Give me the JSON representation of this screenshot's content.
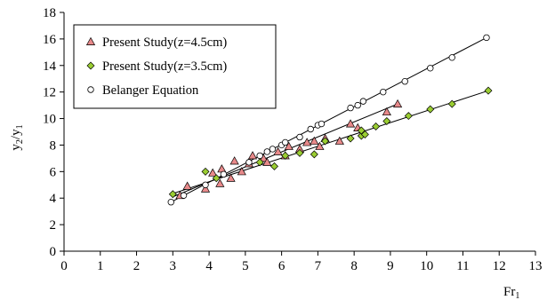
{
  "chart_data": {
    "type": "scatter",
    "xlabel": {
      "base": "Fr",
      "sub": "1"
    },
    "ylabel": {
      "base": "y",
      "sub1": "2",
      "mid": "/y",
      "sub2": "1"
    },
    "xlim": [
      0,
      13
    ],
    "ylim": [
      0,
      18
    ],
    "x_ticks": [
      "0",
      "1",
      "2",
      "3",
      "4",
      "5",
      "6",
      "7",
      "8",
      "9",
      "10",
      "11",
      "12",
      "13"
    ],
    "y_ticks": [
      "0",
      "2",
      "4",
      "6",
      "8",
      "10",
      "12",
      "14",
      "16",
      "18"
    ],
    "grid": false,
    "legend_position": "top-left",
    "series": [
      {
        "name": "Present Study(z=4.5cm)",
        "marker": "triangle",
        "color": "#e8898a",
        "trendline": [
          [
            3.0,
            4.1
          ],
          [
            9.2,
            11.1
          ]
        ],
        "points": [
          [
            3.2,
            4.2
          ],
          [
            3.4,
            4.9
          ],
          [
            3.9,
            4.7
          ],
          [
            4.1,
            5.9
          ],
          [
            4.3,
            5.1
          ],
          [
            4.35,
            6.2
          ],
          [
            4.6,
            5.5
          ],
          [
            4.7,
            6.8
          ],
          [
            4.9,
            6.0
          ],
          [
            5.1,
            6.6
          ],
          [
            5.2,
            7.2
          ],
          [
            5.5,
            7.0
          ],
          [
            5.6,
            6.7
          ],
          [
            5.9,
            7.5
          ],
          [
            6.1,
            7.2
          ],
          [
            6.2,
            7.9
          ],
          [
            6.5,
            7.7
          ],
          [
            6.7,
            8.2
          ],
          [
            6.9,
            8.3
          ],
          [
            7.05,
            7.9
          ],
          [
            7.2,
            8.5
          ],
          [
            7.6,
            8.3
          ],
          [
            7.9,
            9.6
          ],
          [
            8.1,
            9.3
          ],
          [
            8.9,
            10.5
          ],
          [
            9.2,
            11.1
          ]
        ]
      },
      {
        "name": "Present Study(z=3.5cm)",
        "marker": "diamond",
        "color": "#9acd32",
        "trendline": [
          [
            2.95,
            4.3
          ],
          [
            11.7,
            12.1
          ]
        ],
        "points": [
          [
            3.0,
            4.3
          ],
          [
            3.9,
            6.0
          ],
          [
            4.2,
            5.5
          ],
          [
            5.4,
            6.7
          ],
          [
            5.8,
            6.4
          ],
          [
            6.1,
            7.2
          ],
          [
            6.5,
            7.4
          ],
          [
            6.9,
            7.3
          ],
          [
            7.2,
            8.3
          ],
          [
            7.9,
            8.5
          ],
          [
            8.2,
            8.7
          ],
          [
            8.2,
            9.1
          ],
          [
            8.3,
            8.8
          ],
          [
            8.6,
            9.4
          ],
          [
            8.9,
            9.8
          ],
          [
            9.5,
            10.2
          ],
          [
            10.1,
            10.7
          ],
          [
            10.7,
            11.1
          ],
          [
            11.7,
            12.1
          ]
        ]
      },
      {
        "name": "Belanger Equation",
        "marker": "circle",
        "color": "#ffffff",
        "trendline": [
          [
            2.95,
            3.7
          ],
          [
            11.65,
            16.1
          ]
        ],
        "points": [
          [
            2.95,
            3.7
          ],
          [
            3.3,
            4.2
          ],
          [
            3.9,
            5.0
          ],
          [
            4.4,
            5.8
          ],
          [
            5.1,
            6.7
          ],
          [
            5.4,
            7.2
          ],
          [
            5.6,
            7.5
          ],
          [
            5.75,
            7.7
          ],
          [
            6.0,
            8.0
          ],
          [
            6.1,
            8.2
          ],
          [
            6.5,
            8.6
          ],
          [
            6.8,
            9.2
          ],
          [
            7.0,
            9.5
          ],
          [
            7.1,
            9.6
          ],
          [
            7.9,
            10.8
          ],
          [
            8.1,
            11.0
          ],
          [
            8.25,
            11.3
          ],
          [
            8.8,
            12.0
          ],
          [
            9.4,
            12.8
          ],
          [
            10.1,
            13.8
          ],
          [
            10.7,
            14.6
          ],
          [
            11.65,
            16.1
          ]
        ]
      }
    ]
  }
}
